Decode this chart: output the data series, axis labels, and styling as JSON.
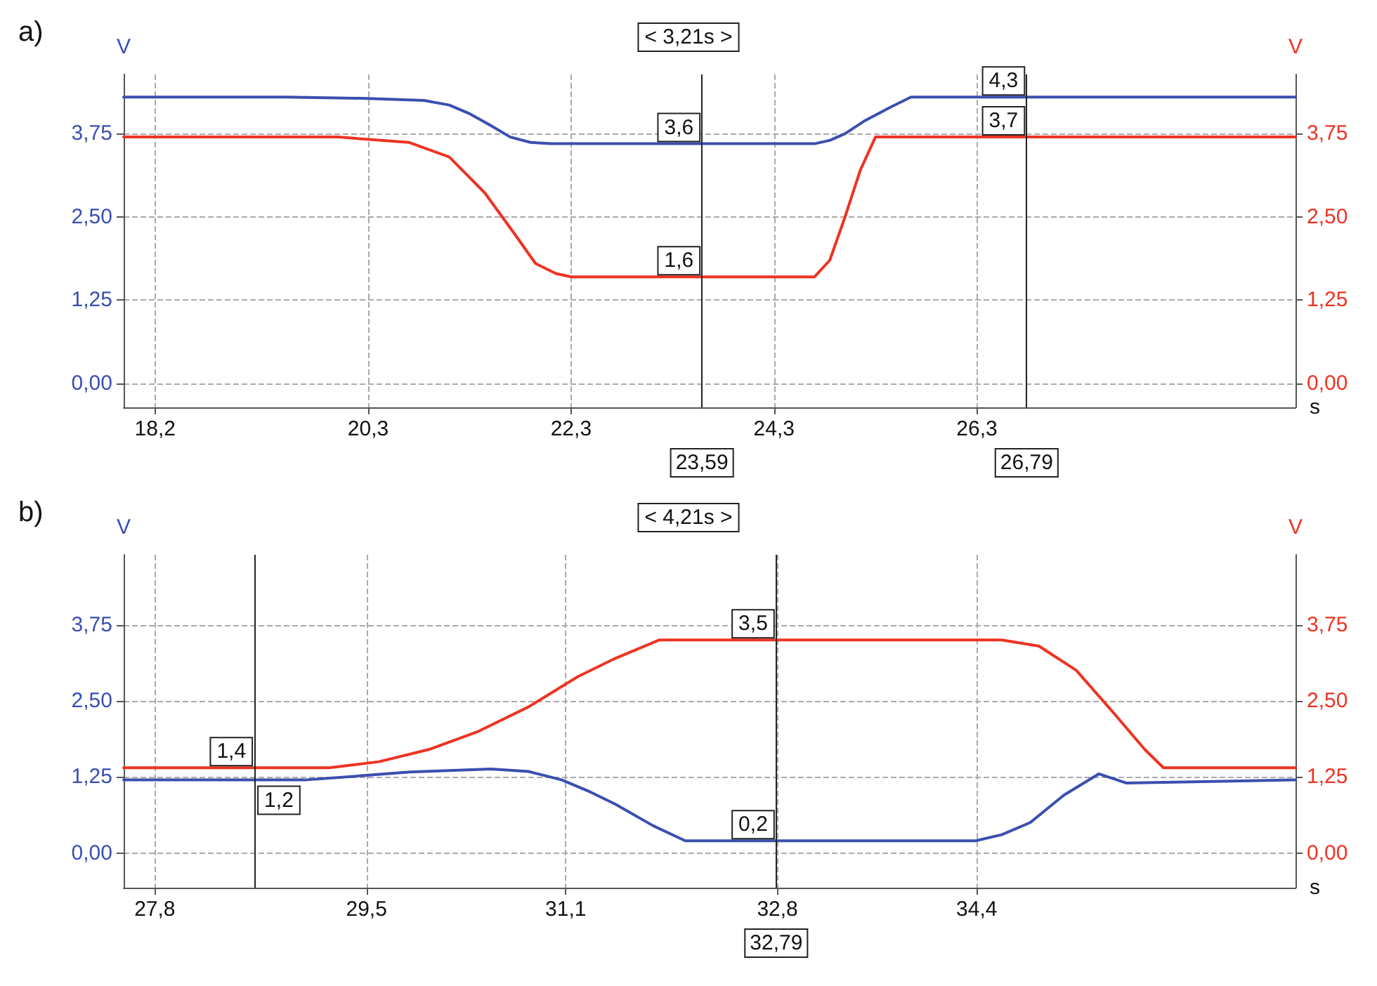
{
  "chart_data": [
    {
      "type": "line",
      "title": "a)",
      "xlabel": "s",
      "ylabel": "V",
      "y2label": "V",
      "grid": true,
      "xlim": [
        17.89,
        29.44
      ],
      "xticks": [
        {
          "value": 18.2,
          "label": "18,2"
        },
        {
          "value": 20.3,
          "label": "20,3"
        },
        {
          "value": 22.3,
          "label": "22,3"
        },
        {
          "value": 24.3,
          "label": "24,3"
        },
        {
          "value": 26.3,
          "label": "26,3"
        }
      ],
      "ylim": [
        -0.36,
        4.64
      ],
      "yticks": [
        {
          "value": 0,
          "label": "0,00"
        },
        {
          "value": 1.25,
          "label": "1,25"
        },
        {
          "value": 2.5,
          "label": "2,50"
        },
        {
          "value": 3.75,
          "label": "3,75"
        }
      ],
      "y2lim": [
        -0.36,
        4.64
      ],
      "y2ticks": [
        {
          "value": 0,
          "label": "0,00"
        },
        {
          "value": 1.25,
          "label": "1,25"
        },
        {
          "value": 2.5,
          "label": "2,50"
        },
        {
          "value": 3.75,
          "label": "3,75"
        }
      ],
      "series": [
        {
          "color": "#3a4fb0",
          "x": [
            17.89,
            19.5,
            20.3,
            20.85,
            21.1,
            21.3,
            21.5,
            21.7,
            21.9,
            22.1,
            24.7,
            24.85,
            25.0,
            25.2,
            25.45,
            25.65,
            29.44
          ],
          "values": [
            4.3,
            4.3,
            4.28,
            4.25,
            4.18,
            4.05,
            3.88,
            3.7,
            3.62,
            3.6,
            3.6,
            3.65,
            3.75,
            3.95,
            4.15,
            4.3,
            4.3
          ]
        },
        {
          "color": "#ee3322",
          "axis": "y2",
          "x": [
            17.89,
            20.0,
            20.7,
            21.1,
            21.45,
            21.75,
            21.95,
            22.15,
            22.3,
            24.7,
            24.85,
            25.0,
            25.15,
            25.3,
            29.44
          ],
          "values": [
            3.7,
            3.7,
            3.62,
            3.4,
            2.86,
            2.23,
            1.8,
            1.65,
            1.6,
            1.6,
            1.85,
            2.5,
            3.2,
            3.7,
            3.7
          ]
        }
      ],
      "ref_lines": [
        {
          "axis": "x",
          "value": 23.59,
          "label": "23,59"
        },
        {
          "axis": "x",
          "value": 26.79,
          "label": "26,79"
        }
      ],
      "annotations": [
        "< 3,21s >",
        {
          "text": "3,6",
          "x": 23.59,
          "y": 3.6
        },
        {
          "text": "1,6",
          "x": 23.59,
          "y": 1.6
        },
        {
          "text": "4,3",
          "x": 26.79,
          "y": 4.3
        },
        {
          "text": "3,7",
          "x": 26.79,
          "y": 3.7
        }
      ]
    },
    {
      "type": "line",
      "title": "b)",
      "xlabel": "s",
      "ylabel": "V",
      "y2label": "V",
      "grid": true,
      "xlim": [
        27.55,
        36.96
      ],
      "xticks": [
        {
          "value": 27.8,
          "label": "27,8"
        },
        {
          "value": 29.5,
          "label": "29,5"
        },
        {
          "value": 31.1,
          "label": "31,1"
        },
        {
          "value": 32.8,
          "label": "32,8"
        },
        {
          "value": 34.4,
          "label": "34,4"
        }
      ],
      "ylim": [
        -0.57,
        4.9
      ],
      "yticks": [
        {
          "value": 0,
          "label": "0,00"
        },
        {
          "value": 1.25,
          "label": "1,25"
        },
        {
          "value": 2.5,
          "label": "2,50"
        },
        {
          "value": 3.75,
          "label": "3,75"
        }
      ],
      "y2lim": [
        -0.57,
        4.9
      ],
      "y2ticks": [
        {
          "value": 0,
          "label": "0,00"
        },
        {
          "value": 1.25,
          "label": "1,25"
        },
        {
          "value": 2.5,
          "label": "2,50"
        },
        {
          "value": 3.75,
          "label": "3,75"
        }
      ],
      "series": [
        {
          "color": "#3a4fb0",
          "x": [
            27.55,
            29.0,
            29.4,
            29.85,
            30.5,
            30.8,
            31.07,
            31.3,
            31.5,
            31.8,
            32.06,
            34.39,
            34.6,
            34.83,
            35.1,
            35.38,
            35.6,
            36.96
          ],
          "values": [
            1.2,
            1.2,
            1.26,
            1.33,
            1.38,
            1.34,
            1.2,
            1.0,
            0.8,
            0.45,
            0.2,
            0.2,
            0.3,
            0.5,
            0.95,
            1.3,
            1.15,
            1.2
          ]
        },
        {
          "color": "#ee3322",
          "axis": "y2",
          "x": [
            27.55,
            29.2,
            29.6,
            30.0,
            30.4,
            30.8,
            31.2,
            31.5,
            31.85,
            34.6,
            34.9,
            35.2,
            35.5,
            35.75,
            35.9,
            36.96
          ],
          "values": [
            1.4,
            1.4,
            1.5,
            1.7,
            2.0,
            2.4,
            2.9,
            3.2,
            3.5,
            3.5,
            3.4,
            3.0,
            2.3,
            1.7,
            1.4,
            1.4
          ]
        }
      ],
      "ref_lines": [
        {
          "axis": "x",
          "value": 28.6
        },
        {
          "axis": "x",
          "value": 32.79,
          "label": "32,79"
        }
      ],
      "annotations": [
        "< 4,21s >",
        {
          "text": "1,4",
          "x": 28.6,
          "y": 1.4
        },
        {
          "text": "1,2",
          "x": 28.6,
          "y": 1.2
        },
        {
          "text": "3,5",
          "x": 32.79,
          "y": 3.5
        },
        {
          "text": "0,2",
          "x": 32.79,
          "y": 0.2
        }
      ]
    }
  ]
}
